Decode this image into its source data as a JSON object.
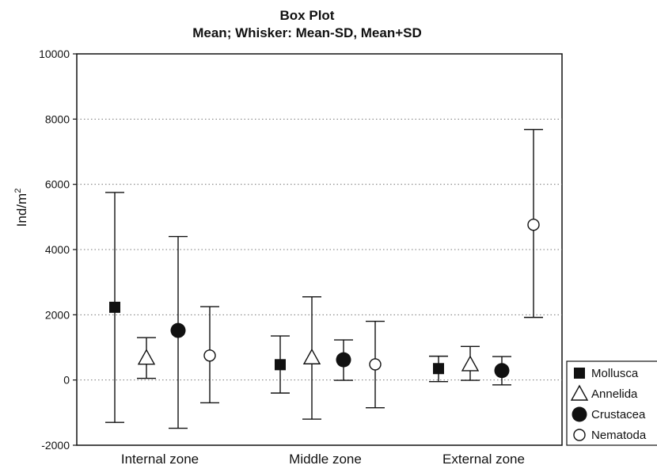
{
  "chart_data": {
    "type": "box",
    "title": "Box Plot",
    "subtitle": "Mean; Whisker: Mean-SD, Mean+SD",
    "ylabel_main": "Ind/m",
    "ylabel_sup": "2",
    "ylim": [
      -2000,
      10000
    ],
    "yticks": [
      -2000,
      0,
      2000,
      4000,
      6000,
      8000,
      10000
    ],
    "grid": true,
    "legend_position": "right",
    "categories": [
      "Internal zone",
      "Middle zone",
      "External zone"
    ],
    "series": [
      {
        "name": "Mollusca",
        "marker": "filled-square",
        "mean": [
          2230,
          470,
          350
        ],
        "low": [
          -1300,
          -400,
          -50
        ],
        "high": [
          5750,
          1350,
          730
        ]
      },
      {
        "name": "Annelida",
        "marker": "open-triangle",
        "mean": [
          680,
          690,
          480
        ],
        "low": [
          50,
          -1200,
          -10
        ],
        "high": [
          1300,
          2550,
          1030
        ]
      },
      {
        "name": "Crustacea",
        "marker": "filled-circle",
        "mean": [
          1520,
          620,
          290
        ],
        "low": [
          -1480,
          -10,
          -150
        ],
        "high": [
          4400,
          1230,
          720
        ]
      },
      {
        "name": "Nematoda",
        "marker": "open-circle",
        "mean": [
          750,
          480,
          4760
        ],
        "low": [
          -700,
          -850,
          1920
        ],
        "high": [
          2250,
          1800,
          7680
        ]
      }
    ]
  }
}
